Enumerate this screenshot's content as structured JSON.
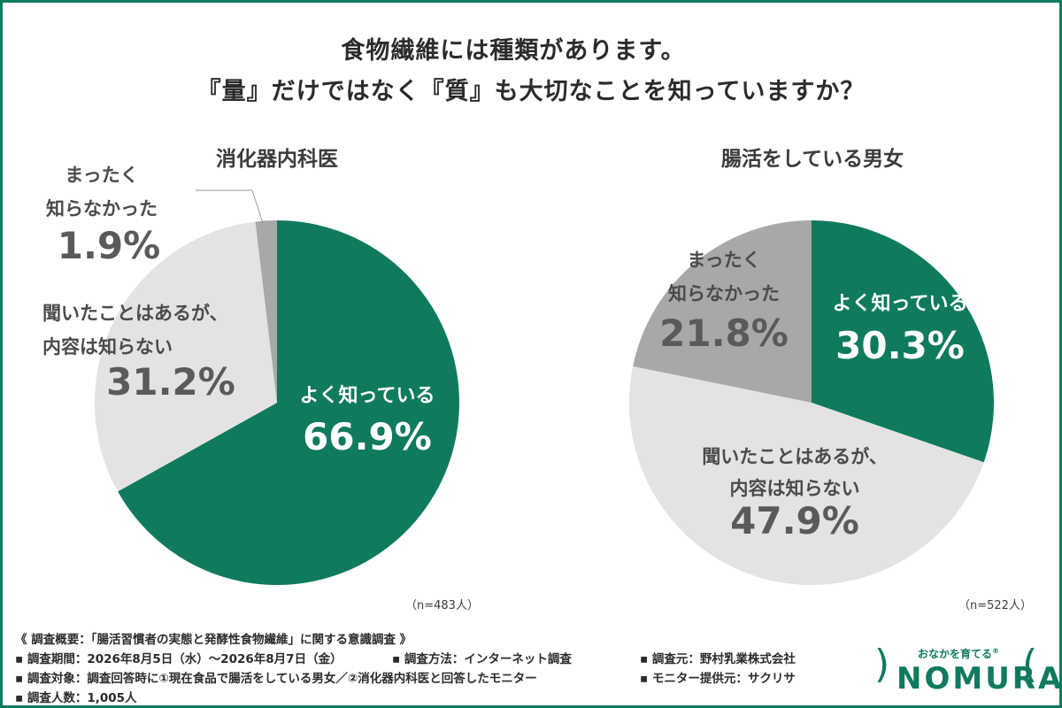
{
  "title": {
    "line1": "食物繊維には種類があります。",
    "line2": "『量』だけではなく『質』も大切なことを知っていますか？"
  },
  "chart_data": [
    {
      "type": "pie",
      "title": "消化器内科医",
      "n_label": "（n=483人）",
      "slices": [
        {
          "label": "よく知っている",
          "value": 66.9,
          "value_label": "66.9%",
          "color": "#0f7a5e"
        },
        {
          "label": "聞いたことはあるが、内容は知らない",
          "value": 31.2,
          "value_label": "31.2%",
          "color": "#e4e3e4"
        },
        {
          "label": "まったく知らなかった",
          "value": 1.9,
          "value_label": "1.9%",
          "color": "#a9a8a9"
        }
      ]
    },
    {
      "type": "pie",
      "title": "腸活をしている男女",
      "n_label": "（n=522人）",
      "slices": [
        {
          "label": "よく知っている",
          "value": 30.3,
          "value_label": "30.3%",
          "color": "#0f7a5e"
        },
        {
          "label": "聞いたことはあるが、内容は知らない",
          "value": 47.9,
          "value_label": "47.9%",
          "color": "#e4e3e4"
        },
        {
          "label": "まったく知らなかった",
          "value": 21.8,
          "value_label": "21.8%",
          "color": "#a9a8a9"
        }
      ]
    }
  ],
  "labels": {
    "left": {
      "green": [
        "よく知っている"
      ],
      "light": [
        "聞いたことはあるが、",
        "内容は知らない"
      ],
      "gray": [
        "まったく",
        "知らなかった"
      ]
    },
    "right": {
      "green": [
        "よく知っている"
      ],
      "light": [
        "聞いたことはあるが、",
        "内容は知らない"
      ],
      "gray": [
        "まったく",
        "知らなかった"
      ]
    }
  },
  "footer": {
    "overview": "《 調査概要：「腸活習慣者の実態と発酵性食物繊維」に関する意識調査 》",
    "period": "▪ 調査期間：2026年8月5日（水）～2026年8月7日（金）",
    "method": "▪ 調査方法：インターネット調査",
    "source": "▪ 調査元：野村乳業株式会社",
    "target": "▪ 調査対象：調査回答時に①現在食品で腸活をしている男女／②消化器内科医と回答したモニター",
    "provider": "▪ モニター提供元：サクリサ",
    "count": "▪ 調査人数：1,005人"
  },
  "logo": {
    "tagline": "おなかを育てる",
    "name": "NOMURA",
    "registered": "®"
  },
  "colors": {
    "accent": "#0f7a5e",
    "light_slice": "#e4e3e4",
    "gray_slice": "#a9a8a9"
  }
}
